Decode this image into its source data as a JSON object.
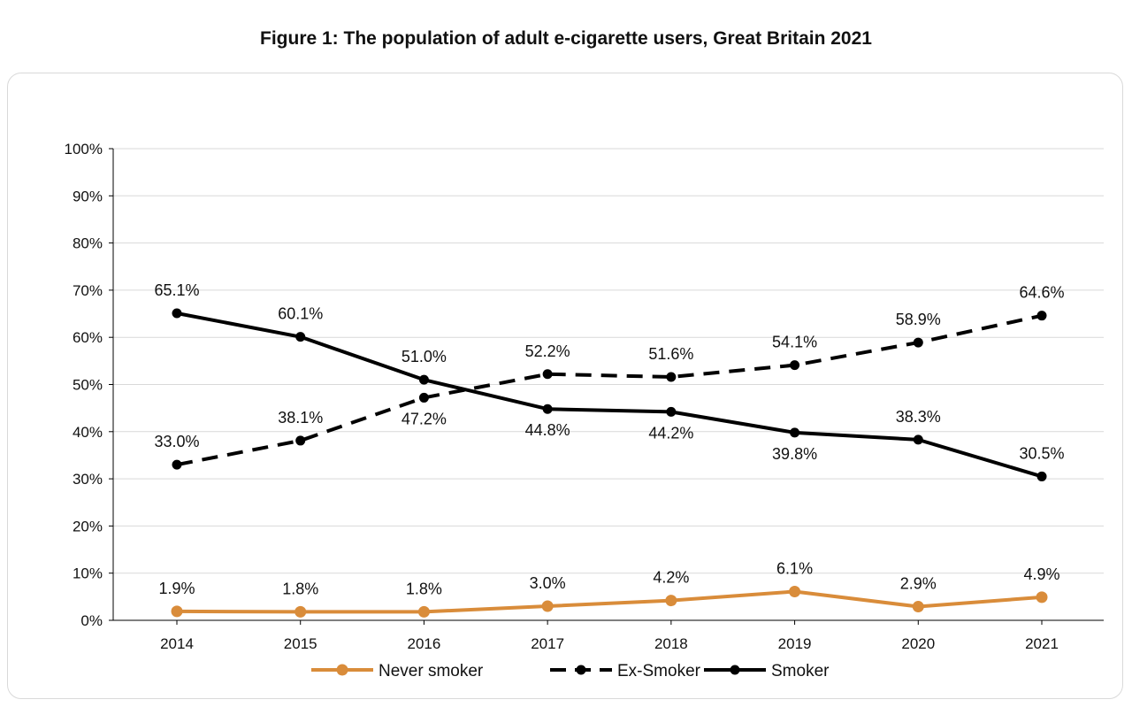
{
  "chart_data": {
    "type": "line",
    "title": "Figure 1: The population of adult e-cigarette users, Great Britain 2021",
    "categories": [
      "2014",
      "2015",
      "2016",
      "2017",
      "2018",
      "2019",
      "2020",
      "2021"
    ],
    "y_ticks": [
      "0%",
      "10%",
      "20%",
      "30%",
      "40%",
      "50%",
      "60%",
      "70%",
      "80%",
      "90%",
      "100%"
    ],
    "ylim": [
      0,
      100
    ],
    "grid": true,
    "legend_placement": "bottom",
    "series": [
      {
        "name": "Never smoker",
        "color": "#D98C3A",
        "style": "solid",
        "values": [
          1.9,
          1.8,
          1.8,
          3.0,
          4.2,
          6.1,
          2.9,
          4.9
        ],
        "labels": [
          "1.9%",
          "1.8%",
          "1.8%",
          "3.0%",
          "4.2%",
          "6.1%",
          "2.9%",
          "4.9%"
        ]
      },
      {
        "name": "Ex-Smoker",
        "color": "#000000",
        "style": "dashed",
        "values": [
          33.0,
          38.1,
          47.2,
          52.2,
          51.6,
          54.1,
          58.9,
          64.6
        ],
        "labels": [
          "33.0%",
          "38.1%",
          "47.2%",
          "52.2%",
          "51.6%",
          "54.1%",
          "58.9%",
          "64.6%"
        ]
      },
      {
        "name": "Smoker",
        "color": "#000000",
        "style": "solid",
        "values": [
          65.1,
          60.1,
          51.0,
          44.8,
          44.2,
          39.8,
          38.3,
          30.5
        ],
        "labels": [
          "65.1%",
          "60.1%",
          "51.0%",
          "44.8%",
          "44.2%",
          "39.8%",
          "38.3%",
          "30.5%"
        ]
      }
    ]
  }
}
